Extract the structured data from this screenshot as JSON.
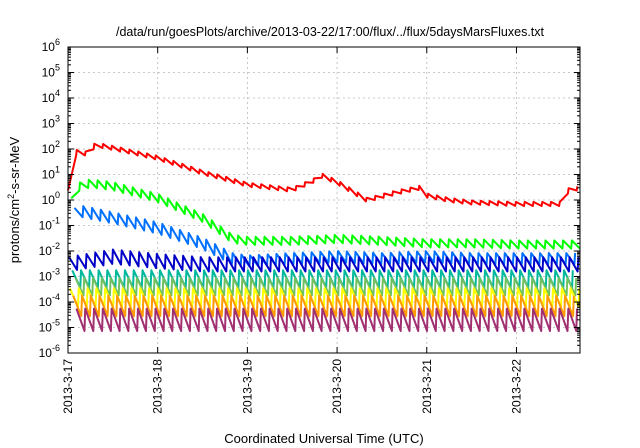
{
  "chart_data": {
    "type": "line",
    "title": "/data/run/goesPlots/archive/2013-03-22/17:00/flux/../flux/5daysMarsFluxes.txt",
    "xlabel": "Coordinated Universal Time (UTC)",
    "ylabel": {
      "base": "protons/cm",
      "sup": "2",
      "rest": "-s-sr-MeV"
    },
    "y_scale": "log",
    "ylim": [
      1e-06,
      1000000.0
    ],
    "xlim": [
      "2013-03-17T00:00",
      "2013-03-22T17:00"
    ],
    "grid": true,
    "legend": "none",
    "x_ticks": [
      "2013-3-17",
      "2013-3-18",
      "2013-3-19",
      "2013-3-20",
      "2013-3-21",
      "2013-3-22"
    ],
    "y_ticks": [
      {
        "value": 1e-06,
        "base": "10",
        "exp": "-6"
      },
      {
        "value": 1e-05,
        "base": "10",
        "exp": "-5"
      },
      {
        "value": 0.0001,
        "base": "10",
        "exp": "-4"
      },
      {
        "value": 0.001,
        "base": "10",
        "exp": "-3"
      },
      {
        "value": 0.01,
        "base": "10",
        "exp": "-2"
      },
      {
        "value": 0.1,
        "base": "10",
        "exp": "-1"
      },
      {
        "value": 1.0,
        "base": "10",
        "exp": "0"
      },
      {
        "value": 10.0,
        "base": "10",
        "exp": "1"
      },
      {
        "value": 100.0,
        "base": "10",
        "exp": "2"
      },
      {
        "value": 1000.0,
        "base": "10",
        "exp": "3"
      },
      {
        "value": 10000.0,
        "base": "10",
        "exp": "4"
      },
      {
        "value": 100000.0,
        "base": "10",
        "exp": "5"
      },
      {
        "value": 1000000.0,
        "base": "10",
        "exp": "6"
      }
    ],
    "series": [
      {
        "color": "#ff0000",
        "points": [
          [
            "2013-03-17T00:00",
            2.0
          ],
          [
            "2013-03-17T01:12",
            30
          ],
          [
            "2013-03-17T02:24",
            80
          ],
          [
            "2013-03-17T06:00",
            60
          ],
          [
            "2013-03-17T07:12",
            150
          ],
          [
            "2013-03-17T12:00",
            110
          ],
          [
            "2013-03-18T00:00",
            45
          ],
          [
            "2013-03-18T12:00",
            12
          ],
          [
            "2013-03-19T00:00",
            4.0
          ],
          [
            "2013-03-19T12:00",
            2.5
          ],
          [
            "2013-03-19T18:00",
            6.0
          ],
          [
            "2013-03-19T20:00",
            9.0
          ],
          [
            "2013-03-20T00:00",
            5.0
          ],
          [
            "2013-03-20T08:00",
            1.0
          ],
          [
            "2013-03-20T16:00",
            2.0
          ],
          [
            "2013-03-20T22:00",
            3.0
          ],
          [
            "2013-03-21T00:00",
            1.5
          ],
          [
            "2013-03-21T06:00",
            1.0
          ],
          [
            "2013-03-21T12:00",
            0.8
          ],
          [
            "2013-03-22T00:00",
            0.7
          ],
          [
            "2013-03-22T12:00",
            0.7
          ],
          [
            "2013-03-22T14:00",
            2.5
          ],
          [
            "2013-03-22T17:00",
            3.0
          ]
        ]
      },
      {
        "color": "#00ff00",
        "points": [
          [
            "2013-03-17T00:00",
            0.3
          ],
          [
            "2013-03-17T02:00",
            3.0
          ],
          [
            "2013-03-17T06:00",
            4.5
          ],
          [
            "2013-03-17T12:00",
            3.5
          ],
          [
            "2013-03-18T00:00",
            1.2
          ],
          [
            "2013-03-18T12:00",
            0.2
          ],
          [
            "2013-03-18T20:00",
            0.03
          ],
          [
            "2013-03-19T00:00",
            0.025
          ],
          [
            "2013-03-19T12:00",
            0.025
          ],
          [
            "2013-03-20T00:00",
            0.03
          ],
          [
            "2013-03-20T12:00",
            0.025
          ],
          [
            "2013-03-21T00:00",
            0.02
          ],
          [
            "2013-03-21T12:00",
            0.02
          ],
          [
            "2013-03-22T00:00",
            0.018
          ],
          [
            "2013-03-22T17:00",
            0.018
          ]
        ]
      },
      {
        "color": "#0070ff",
        "points": [
          [
            "2013-03-17T00:00",
            0.04
          ],
          [
            "2013-03-17T02:00",
            0.4
          ],
          [
            "2013-03-17T12:00",
            0.2
          ],
          [
            "2013-03-18T00:00",
            0.08
          ],
          [
            "2013-03-18T12:00",
            0.02
          ],
          [
            "2013-03-18T20:00",
            0.005
          ],
          [
            "2013-03-19T00:00",
            0.004
          ],
          [
            "2013-03-19T12:00",
            0.005
          ],
          [
            "2013-03-20T00:00",
            0.006
          ],
          [
            "2013-03-20T12:00",
            0.005
          ],
          [
            "2013-03-21T00:00",
            0.006
          ],
          [
            "2013-03-21T12:00",
            0.005
          ],
          [
            "2013-03-22T00:00",
            0.005
          ],
          [
            "2013-03-22T17:00",
            0.005
          ]
        ]
      },
      {
        "color": "#0000c8",
        "points": [
          [
            "2013-03-17T00:00",
            0.003
          ],
          [
            "2013-03-17T12:00",
            0.006
          ],
          [
            "2013-03-18T00:00",
            0.004
          ],
          [
            "2013-03-18T12:00",
            0.003
          ],
          [
            "2013-03-19T00:00",
            0.003
          ],
          [
            "2013-03-20T00:00",
            0.003
          ],
          [
            "2013-03-21T00:00",
            0.003
          ],
          [
            "2013-03-22T00:00",
            0.003
          ],
          [
            "2013-03-22T17:00",
            0.003
          ]
        ]
      },
      {
        "color": "#00b89c",
        "points": [
          [
            "2013-03-17T00:00",
            0.0008
          ],
          [
            "2013-03-18T00:00",
            0.0008
          ],
          [
            "2013-03-19T00:00",
            0.0008
          ],
          [
            "2013-03-20T00:00",
            0.0008
          ],
          [
            "2013-03-21T00:00",
            0.0008
          ],
          [
            "2013-03-22T00:00",
            0.0008
          ],
          [
            "2013-03-22T17:00",
            0.0008
          ]
        ]
      },
      {
        "color": "#70c060",
        "points": [
          [
            "2013-03-17T00:00",
            0.0004
          ],
          [
            "2013-03-18T00:00",
            0.0004
          ],
          [
            "2013-03-19T00:00",
            0.0004
          ],
          [
            "2013-03-20T00:00",
            0.0004
          ],
          [
            "2013-03-21T00:00",
            0.0004
          ],
          [
            "2013-03-22T00:00",
            0.0004
          ],
          [
            "2013-03-22T17:00",
            0.0004
          ]
        ]
      },
      {
        "color": "#ffff00",
        "points": [
          [
            "2013-03-17T00:00",
            0.00015
          ],
          [
            "2013-03-18T00:00",
            0.00015
          ],
          [
            "2013-03-19T00:00",
            0.00015
          ],
          [
            "2013-03-20T00:00",
            0.00015
          ],
          [
            "2013-03-21T00:00",
            0.00015
          ],
          [
            "2013-03-22T00:00",
            0.00015
          ],
          [
            "2013-03-22T17:00",
            0.00015
          ]
        ]
      },
      {
        "color": "#ff9a00",
        "points": [
          [
            "2013-03-17T00:00",
            7e-05
          ],
          [
            "2013-03-18T00:00",
            7e-05
          ],
          [
            "2013-03-19T00:00",
            7e-05
          ],
          [
            "2013-03-20T00:00",
            7e-05
          ],
          [
            "2013-03-21T00:00",
            7e-05
          ],
          [
            "2013-03-22T00:00",
            7e-05
          ],
          [
            "2013-03-22T17:00",
            7e-05
          ]
        ]
      },
      {
        "color": "#a03070",
        "points": [
          [
            "2013-03-17T00:00",
            2e-05
          ],
          [
            "2013-03-18T00:00",
            2e-05
          ],
          [
            "2013-03-19T00:00",
            2e-05
          ],
          [
            "2013-03-20T00:00",
            2e-05
          ],
          [
            "2013-03-21T00:00",
            2e-05
          ],
          [
            "2013-03-22T00:00",
            2e-05
          ],
          [
            "2013-03-22T17:00",
            2e-05
          ]
        ]
      }
    ]
  }
}
